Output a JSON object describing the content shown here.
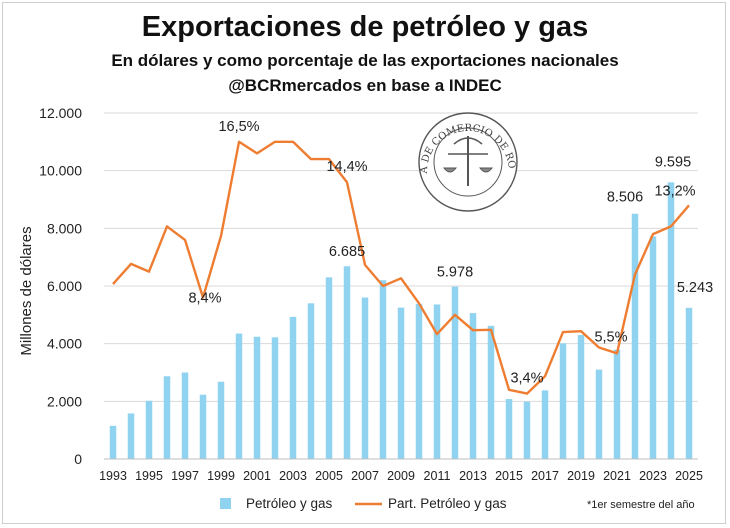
{
  "chart_data": {
    "type": "bar",
    "title": "Exportaciones de petróleo y gas",
    "subtitle": "En dólares y como porcentaje de las exportaciones nacionales",
    "source": "@BCRmercados en base a INDEC",
    "ylabel": "Millones de dólares",
    "ylim": [
      0,
      12000
    ],
    "yticks": [
      "0",
      "2.000",
      "4.000",
      "6.000",
      "8.000",
      "10.000",
      "12.000"
    ],
    "ytick_values": [
      0,
      2000,
      4000,
      6000,
      8000,
      10000,
      12000
    ],
    "grid": true,
    "legend_position": "bottom",
    "footnote": "*1er semestre del año",
    "categories": [
      "1993",
      "1994",
      "1995",
      "1996",
      "1997",
      "1998",
      "1999",
      "2000",
      "2001",
      "2002",
      "2003",
      "2004",
      "2005",
      "2006",
      "2007",
      "2008",
      "2009",
      "2010",
      "2011",
      "2012",
      "2013",
      "2014",
      "2015",
      "2016",
      "2017",
      "2018",
      "2019",
      "2020",
      "2021",
      "2022",
      "2023",
      "2024",
      "2025"
    ],
    "x_tick_labels": [
      "1993",
      "1995",
      "1997",
      "1999",
      "2001",
      "2003",
      "2005",
      "2007",
      "2009",
      "2011",
      "2013",
      "2015",
      "2017",
      "2019",
      "2021",
      "2023",
      "2025"
    ],
    "series": [
      {
        "name": "Petróleo y gas",
        "type": "bar",
        "color": "#8fd3f0",
        "values": [
          1150,
          1580,
          2020,
          2870,
          3000,
          2230,
          2680,
          4350,
          4240,
          4220,
          4930,
          5400,
          6300,
          6685,
          5600,
          6200,
          5250,
          5380,
          5360,
          5978,
          5060,
          4620,
          2080,
          1990,
          2380,
          4010,
          4300,
          3100,
          3790,
          8506,
          7720,
          9595,
          5243
        ]
      },
      {
        "name": "Part. Petróleo y gas",
        "type": "line",
        "axis": "percent",
        "color": "#ee7d31",
        "ylim": [
          0,
          18
        ],
        "values": [
          9.1,
          10.15,
          9.75,
          12.1,
          11.4,
          8.4,
          11.6,
          16.5,
          15.9,
          16.5,
          16.5,
          15.6,
          15.6,
          14.4,
          10.1,
          9.0,
          9.4,
          8.1,
          6.5,
          7.5,
          6.7,
          6.72,
          3.6,
          3.4,
          4.3,
          6.6,
          6.65,
          5.8,
          5.5,
          9.6,
          11.7,
          12.1,
          13.2
        ]
      }
    ],
    "annotations": [
      {
        "series": 0,
        "index": 13,
        "text": "6.685"
      },
      {
        "series": 0,
        "index": 19,
        "text": "5.978"
      },
      {
        "series": 0,
        "index": 29,
        "text": "8.506"
      },
      {
        "series": 0,
        "index": 31,
        "text": "9.595"
      },
      {
        "series": 0,
        "index": 32,
        "text": "5.243"
      },
      {
        "series": 1,
        "index": 5,
        "text": "8,4%"
      },
      {
        "series": 1,
        "index": 7,
        "text": "16,5%"
      },
      {
        "series": 1,
        "index": 13,
        "text": "14,4%"
      },
      {
        "series": 1,
        "index": 23,
        "text": "3,4%"
      },
      {
        "series": 1,
        "index": 28,
        "text": "5,5%"
      },
      {
        "series": 1,
        "index": 32,
        "text": "13,2%"
      }
    ],
    "seal": {
      "text": "BOLSA DE COMERCIO DE ROSARIO"
    }
  }
}
